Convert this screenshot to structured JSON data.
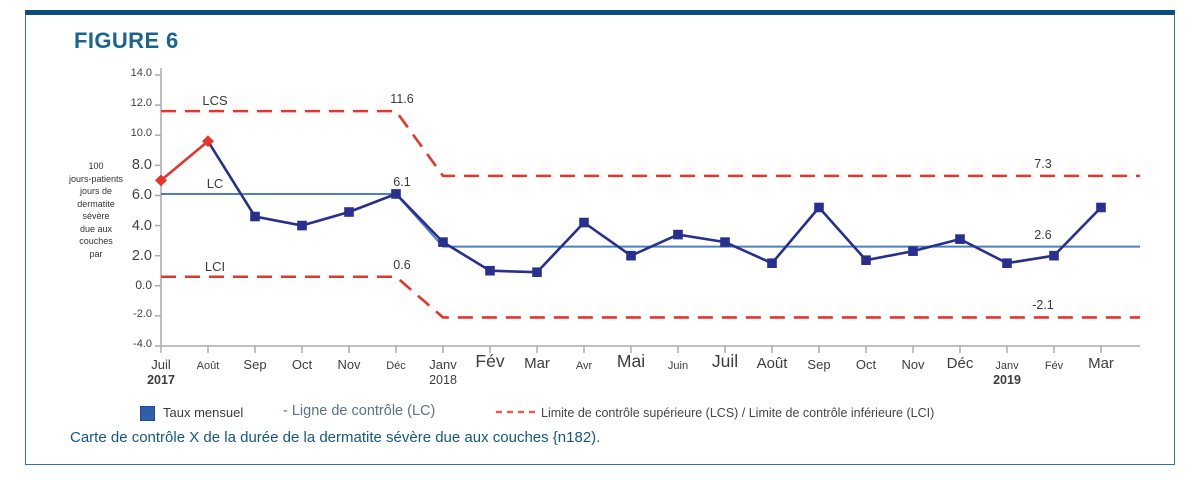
{
  "figure": {
    "label": "FIGURE 6",
    "caption": "Carte de contrôle X de la durée de la dermatite sévère due aux couches {n182)."
  },
  "legend": {
    "series_label": "Taux mensuel",
    "lc_label": "- Ligne de contrôle (LC)",
    "limits_label": "Limite de contrôle supérieure (LCS) / Limite de contrôle inférieure (LCI)"
  },
  "chart_data": {
    "type": "line",
    "title": "FIGURE 6",
    "ylabel_lines": "100\njours-patients\njours de\ndermatite\nsévère\ndue aux\ncouches\npar",
    "ylim": [
      -4,
      14
    ],
    "ytick_step": 2,
    "yticks": [
      {
        "label": "14.0",
        "size": "s"
      },
      {
        "label": "12.0",
        "size": "s"
      },
      {
        "label": "10.0",
        "size": "s"
      },
      {
        "label": "8.0",
        "size": "l"
      },
      {
        "label": "6.0",
        "size": "l"
      },
      {
        "label": "4.0",
        "size": "l"
      },
      {
        "label": "2.0",
        "size": "l"
      },
      {
        "label": "0.0",
        "size": "m"
      },
      {
        "label": "-2.0",
        "size": "s"
      },
      {
        "label": "-4.0",
        "size": "s"
      }
    ],
    "categories": [
      {
        "label": "Juil",
        "year": "2017",
        "year_bold": true,
        "size": "m"
      },
      {
        "label": "Août",
        "size": "s"
      },
      {
        "label": "Sep",
        "size": "m"
      },
      {
        "label": "Oct",
        "size": "m"
      },
      {
        "label": "Nov",
        "size": "m"
      },
      {
        "label": "Déc",
        "size": "s"
      },
      {
        "label": "Janv",
        "year": "2018",
        "year_bold": false,
        "size": "m"
      },
      {
        "label": "Fév",
        "size": "xl"
      },
      {
        "label": "Mar",
        "size": "l"
      },
      {
        "label": "Avr",
        "size": "s"
      },
      {
        "label": "Mai",
        "size": "xl"
      },
      {
        "label": "Juin",
        "size": "s"
      },
      {
        "label": "Juil",
        "size": "xl"
      },
      {
        "label": "Août",
        "size": "l"
      },
      {
        "label": "Sep",
        "size": "m"
      },
      {
        "label": "Oct",
        "size": "m"
      },
      {
        "label": "Nov",
        "size": "m"
      },
      {
        "label": "Déc",
        "size": "l"
      },
      {
        "label": "Janv",
        "year": "2019",
        "year_bold": true,
        "size": "s"
      },
      {
        "label": "Fév",
        "size": "s"
      },
      {
        "label": "Mar",
        "size": "l"
      }
    ],
    "series": [
      {
        "name": "Taux mensuel",
        "values": [
          7.0,
          9.6,
          4.6,
          4.0,
          4.9,
          6.1,
          2.9,
          1.0,
          0.9,
          4.2,
          2.0,
          3.4,
          2.9,
          1.5,
          5.2,
          1.7,
          2.3,
          3.1,
          1.5,
          2.0,
          5.2
        ],
        "special_points": [
          0,
          1
        ]
      }
    ],
    "phases": [
      {
        "from": 0,
        "to": 5,
        "lcs": 11.6,
        "lc": 6.1,
        "lci": 0.6,
        "line_labels": {
          "lcs": "LCS",
          "lc": "LC",
          "lci": "LCI"
        },
        "value_labels": {
          "lcs": "11.6",
          "lc": "6.1",
          "lci": "0.6"
        }
      },
      {
        "from": 6,
        "to": 20,
        "lcs": 7.3,
        "lc": 2.6,
        "lci": -2.1,
        "value_labels": {
          "lcs": "7.3",
          "lc": "2.6",
          "lci": "-2.1"
        }
      }
    ],
    "colors": {
      "series": "#282f8e",
      "special": "#e7352b",
      "lc_line": "#4d7ec0",
      "limit_line": "#e7352b",
      "legend_dash": "#ea5c4f",
      "legend_swatch": "#2e5fa8",
      "axis": "#aaaaaa",
      "title": "#1a648f",
      "caption": "#15587e"
    },
    "legend_position": "bottom",
    "grid": false
  }
}
